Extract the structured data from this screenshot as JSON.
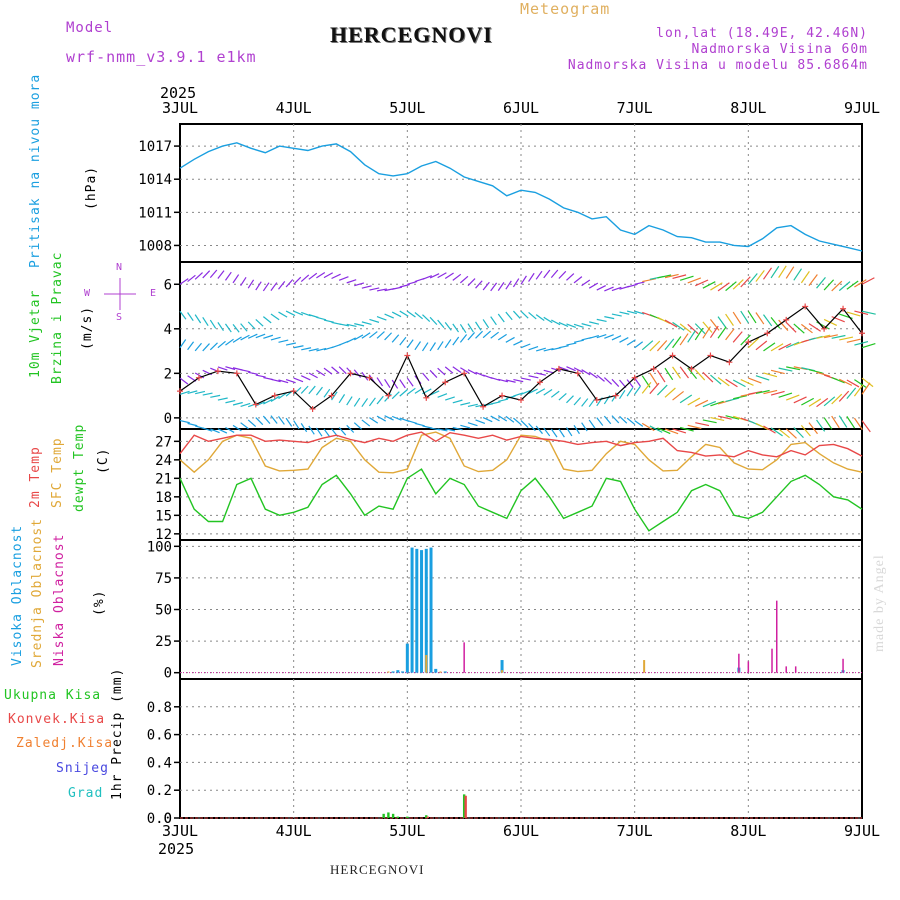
{
  "header": {
    "model_label": "Model",
    "model_name": "wrf-nmm_v3.9.1 e1km",
    "title": "HERCEGNOVI",
    "product": "Meteogram",
    "lonlat": "lon,lat (18.49E, 42.46N)",
    "elevation": "Nadmorska Visina 60m",
    "model_elevation": "Nadmorska Visina u modelu 85.6864m"
  },
  "footer": {
    "station": "HERCEGNOVI",
    "credit": "made by Angel"
  },
  "axis": {
    "year": "2025",
    "days": [
      "3JUL",
      "4JUL",
      "5JUL",
      "6JUL",
      "7JUL",
      "8JUL",
      "9JUL"
    ]
  },
  "panels": {
    "pressure": {
      "label": "Pritisak na nivou mora",
      "unit": "(hPa)"
    },
    "wind": {
      "label1": "10m Vjetar",
      "label2": "Brzina i Pravac",
      "unit": "(m/s)",
      "compass_w": "W",
      "compass_e": "E",
      "compass_n": "N",
      "compass_s": "S"
    },
    "temp": {
      "label1": "2m Temp",
      "label2": "SFC Temp",
      "label3": "dewpt Temp",
      "unit": "(C)"
    },
    "cloud": {
      "label1": "Visoka Oblacnost",
      "label2": "Srednja Oblacnost",
      "label3": "Niska Oblacnost",
      "unit": "(%)"
    },
    "precip": {
      "l1": "Ukupna Kisa",
      "l2": "Konvek.Kisa",
      "l3": "Zaledj.Kisa",
      "l4": "Snijeg",
      "l5": "Grad",
      "unit": "1hr Precip (mm)"
    }
  },
  "colors": {
    "pressure": "#1a9fe0",
    "temp2m": "#e84848",
    "sfc": "#e0a838",
    "dewpt": "#22c422",
    "high_cloud": "#1a9fe0",
    "mid_cloud": "#e0a838",
    "low_cloud": "#d020a0",
    "total_rain": "#22c422",
    "conv_rain": "#e84848",
    "freezing": "#f08030",
    "snow": "#4848e0",
    "hail": "#20c0c0",
    "purple": "#b040d0",
    "meteogram": "#e0b060"
  },
  "chart_data": [
    {
      "type": "line",
      "title": "Pritisak na nivou mora",
      "ylabel": "(hPa)",
      "x_range_hours": [
        0,
        144
      ],
      "ylim": [
        1006.5,
        1019
      ],
      "yticks": [
        1008,
        1011,
        1014,
        1017
      ],
      "series": [
        {
          "name": "Pritisak na nivou mora",
          "x": [
            0,
            3,
            6,
            9,
            12,
            15,
            18,
            21,
            24,
            27,
            30,
            33,
            36,
            39,
            42,
            45,
            48,
            51,
            54,
            57,
            60,
            63,
            66,
            69,
            72,
            75,
            78,
            81,
            84,
            87,
            90,
            93,
            96,
            99,
            102,
            105,
            108,
            111,
            114,
            117,
            120,
            123,
            126,
            129,
            132,
            135,
            138,
            141,
            144
          ],
          "values": [
            1015,
            1015.8,
            1016.5,
            1017,
            1017.3,
            1016.8,
            1016.4,
            1017,
            1016.8,
            1016.6,
            1017,
            1017.2,
            1016.5,
            1015.3,
            1014.5,
            1014.3,
            1014.5,
            1015.2,
            1015.6,
            1015,
            1014.2,
            1013.8,
            1013.4,
            1012.5,
            1013,
            1012.8,
            1012.2,
            1011.4,
            1011,
            1010.4,
            1010.6,
            1009.4,
            1009,
            1009.8,
            1009.4,
            1008.8,
            1008.7,
            1008.3,
            1008.3,
            1008.0,
            1007.9,
            1008.6,
            1009.6,
            1009.8,
            1009.0,
            1008.4,
            1008.1,
            1007.8,
            1007.5
          ]
        }
      ]
    },
    {
      "type": "line",
      "title": "10m Vjetar Brzina i Pravac",
      "ylabel": "(m/s)",
      "x_range_hours": [
        0,
        144
      ],
      "ylim": [
        -0.5,
        7
      ],
      "yticks": [
        0,
        2,
        4,
        6
      ],
      "series": [
        {
          "name": "speed",
          "x": [
            0,
            4,
            8,
            12,
            16,
            20,
            24,
            28,
            32,
            36,
            40,
            44,
            48,
            52,
            56,
            60,
            64,
            68,
            72,
            76,
            80,
            84,
            88,
            92,
            96,
            100,
            104,
            108,
            112,
            116,
            120,
            124,
            128,
            132,
            136,
            140,
            144
          ],
          "values": [
            1.2,
            1.8,
            2.1,
            2.0,
            0.6,
            1.0,
            1.2,
            0.4,
            1.0,
            2.0,
            1.8,
            1.0,
            2.8,
            0.9,
            1.6,
            2.0,
            0.5,
            1.0,
            0.8,
            1.6,
            2.2,
            2.0,
            0.8,
            1.0,
            1.8,
            2.2,
            2.8,
            2.2,
            2.8,
            2.5,
            3.4,
            3.8,
            4.4,
            5.0,
            4.0,
            4.9,
            3.8
          ]
        }
      ]
    },
    {
      "type": "line",
      "title": "2m Temp / SFC Temp / dewpt Temp",
      "ylabel": "(C)",
      "x_range_hours": [
        0,
        144
      ],
      "ylim": [
        11,
        29
      ],
      "yticks": [
        12,
        15,
        18,
        21,
        24,
        27
      ],
      "series": [
        {
          "name": "2m Temp",
          "x": [
            0,
            3,
            6,
            9,
            12,
            15,
            18,
            21,
            24,
            27,
            30,
            33,
            36,
            39,
            42,
            45,
            48,
            51,
            54,
            57,
            60,
            63,
            66,
            69,
            72,
            75,
            78,
            81,
            84,
            87,
            90,
            93,
            96,
            99,
            102,
            105,
            108,
            111,
            114,
            117,
            120,
            123,
            126,
            129,
            132,
            135,
            138,
            141,
            144
          ],
          "values": [
            25,
            28,
            27,
            27.5,
            28,
            28,
            27,
            27.2,
            27,
            26.8,
            27.5,
            28,
            27.3,
            26.8,
            27.5,
            27,
            28,
            28.5,
            27,
            28.4,
            28,
            27.5,
            28,
            27.2,
            27.8,
            27.5,
            27.3,
            27,
            26.5,
            26.8,
            27,
            26.3,
            26.8,
            27,
            27.5,
            25.5,
            25.2,
            24.6,
            24.8,
            24.5,
            25.5,
            24.8,
            24.5,
            25.5,
            24.8,
            26.3,
            26.5,
            25.8,
            24.6
          ]
        },
        {
          "name": "SFC Temp",
          "x": [
            0,
            3,
            6,
            9,
            12,
            15,
            18,
            21,
            24,
            27,
            30,
            33,
            36,
            39,
            42,
            45,
            48,
            51,
            54,
            57,
            60,
            63,
            66,
            69,
            72,
            75,
            78,
            81,
            84,
            87,
            90,
            93,
            96,
            99,
            102,
            105,
            108,
            111,
            114,
            117,
            120,
            123,
            126,
            129,
            132,
            135,
            138,
            141,
            144
          ],
          "values": [
            24,
            22,
            24,
            27,
            28,
            27.5,
            23,
            22.2,
            22.3,
            22.5,
            26,
            27.5,
            27,
            24,
            22,
            21.9,
            22.5,
            28,
            28.5,
            27.5,
            23,
            22.1,
            22.3,
            24,
            28,
            27.8,
            27,
            22.5,
            22.1,
            22.3,
            25,
            27,
            26.5,
            24,
            22.2,
            22.3,
            24.5,
            26.5,
            26,
            23.5,
            22.5,
            22.4,
            24,
            26.5,
            26.8,
            25,
            23.5,
            22.5,
            22
          ]
        },
        {
          "name": "dewpt Temp",
          "x": [
            0,
            3,
            6,
            9,
            12,
            15,
            18,
            21,
            24,
            27,
            30,
            33,
            36,
            39,
            42,
            45,
            48,
            51,
            54,
            57,
            60,
            63,
            66,
            69,
            72,
            75,
            78,
            81,
            84,
            87,
            90,
            93,
            96,
            99,
            102,
            105,
            108,
            111,
            114,
            117,
            120,
            123,
            126,
            129,
            132,
            135,
            138,
            141,
            144
          ],
          "values": [
            21,
            16,
            14,
            14,
            20,
            21,
            16,
            15,
            15.5,
            16.3,
            20,
            21.5,
            18.5,
            15,
            16.5,
            16,
            21,
            22.5,
            18.5,
            21,
            20,
            16.5,
            15.5,
            14.5,
            19,
            21,
            18,
            14.5,
            15.5,
            16.5,
            21,
            20.5,
            16,
            12.5,
            14,
            15.5,
            19,
            20,
            19,
            15,
            14.5,
            15.5,
            18,
            20.5,
            21.5,
            20,
            18,
            17.5,
            16
          ]
        }
      ]
    },
    {
      "type": "bar",
      "title": "Visoka / Srednja / Niska Oblacnost",
      "ylabel": "(%)",
      "x_range_hours": [
        0,
        144
      ],
      "ylim": [
        -5,
        105
      ],
      "yticks": [
        0,
        25,
        50,
        75,
        100
      ],
      "series": [
        {
          "name": "Visoka Oblacnost",
          "x": [
            45,
            46,
            47,
            48,
            49,
            50,
            51,
            52,
            53,
            54,
            56,
            68,
            118,
            140
          ],
          "values": [
            1,
            2,
            1,
            23,
            99,
            98,
            97,
            98,
            99,
            3,
            1,
            10,
            4,
            2
          ]
        },
        {
          "name": "Srednja Oblacnost",
          "x": [
            44,
            52,
            55,
            68,
            98,
            118
          ],
          "values": [
            1,
            14,
            1,
            2,
            10,
            1
          ]
        },
        {
          "name": "Niska Oblacnost",
          "x": [
            60,
            118,
            120,
            125,
            126,
            128,
            130,
            140
          ],
          "values": [
            24,
            15,
            9,
            19,
            57,
            5,
            5,
            11
          ]
        }
      ]
    },
    {
      "type": "bar",
      "title": "1hr Precip",
      "ylabel": "1hr Precip (mm)",
      "x_range_hours": [
        0,
        144
      ],
      "ylim": [
        0,
        1.0
      ],
      "yticks": [
        0,
        0.2,
        0.4,
        0.6,
        0.8
      ],
      "series": [
        {
          "name": "Ukupna Kisa",
          "x": [
            43,
            44,
            45,
            46,
            48,
            52,
            60
          ],
          "values": [
            0.03,
            0.04,
            0.03,
            0.01,
            0.01,
            0.02,
            0.17
          ]
        },
        {
          "name": "Konvek.Kisa",
          "x": [
            52,
            60
          ],
          "values": [
            0.01,
            0.16
          ]
        }
      ]
    }
  ]
}
